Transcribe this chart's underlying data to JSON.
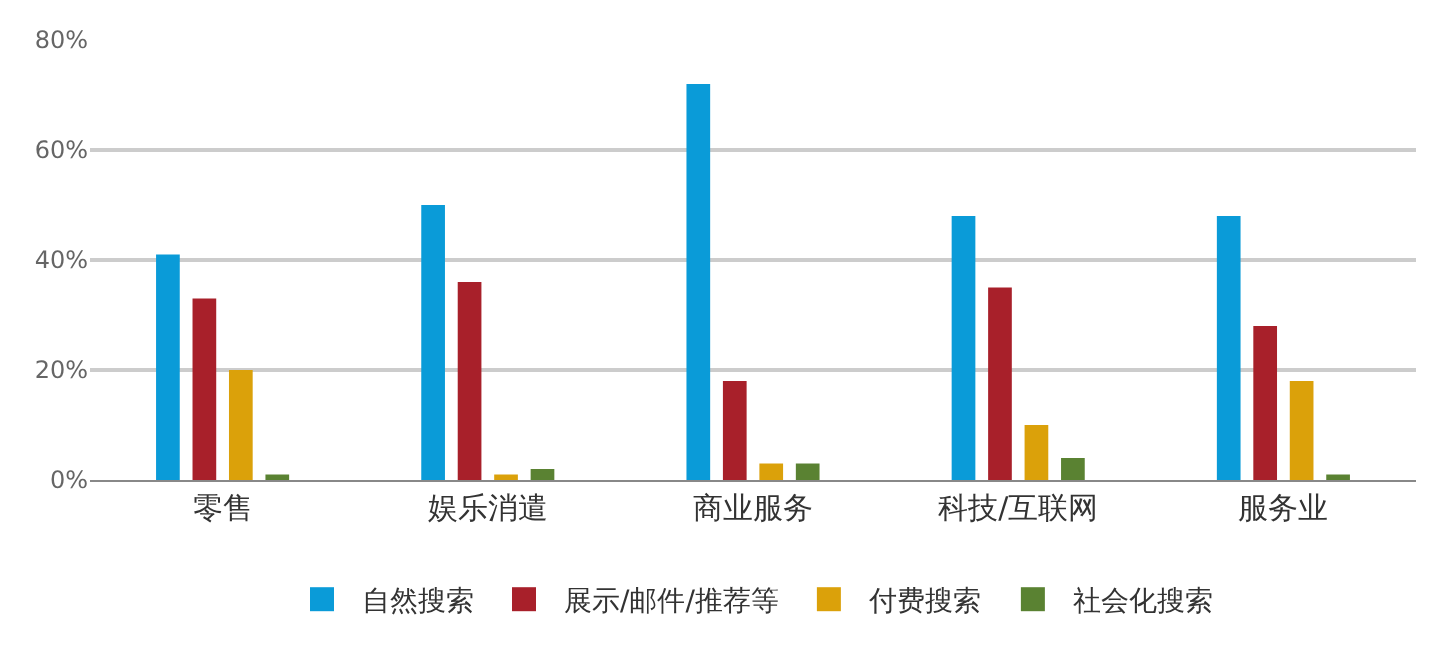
{
  "chart_data": {
    "type": "bar",
    "categories": [
      "零售",
      "娱乐消遣",
      "商业服务",
      "科技/互联网",
      "服务业"
    ],
    "series": [
      {
        "name": "自然搜索",
        "color": "#0a9bd8",
        "values": [
          41,
          50,
          72,
          48,
          48
        ]
      },
      {
        "name": "展示/邮件/推荐等",
        "color": "#a8202a",
        "values": [
          33,
          36,
          18,
          35,
          28
        ]
      },
      {
        "name": "付费搜索",
        "color": "#dba10a",
        "values": [
          20,
          1,
          3,
          10,
          18
        ]
      },
      {
        "name": "社会化搜索",
        "color": "#5a8232",
        "values": [
          1,
          2,
          3,
          4,
          1
        ]
      }
    ],
    "ylim": [
      0,
      80
    ],
    "yticks": [
      {
        "value": 0,
        "label": "0%"
      },
      {
        "value": 20,
        "label": "20%"
      },
      {
        "value": 40,
        "label": "40%"
      },
      {
        "value": 60,
        "label": "60%"
      },
      {
        "value": 80,
        "label": "80%"
      }
    ],
    "grid": "y",
    "legend": "bottom"
  }
}
